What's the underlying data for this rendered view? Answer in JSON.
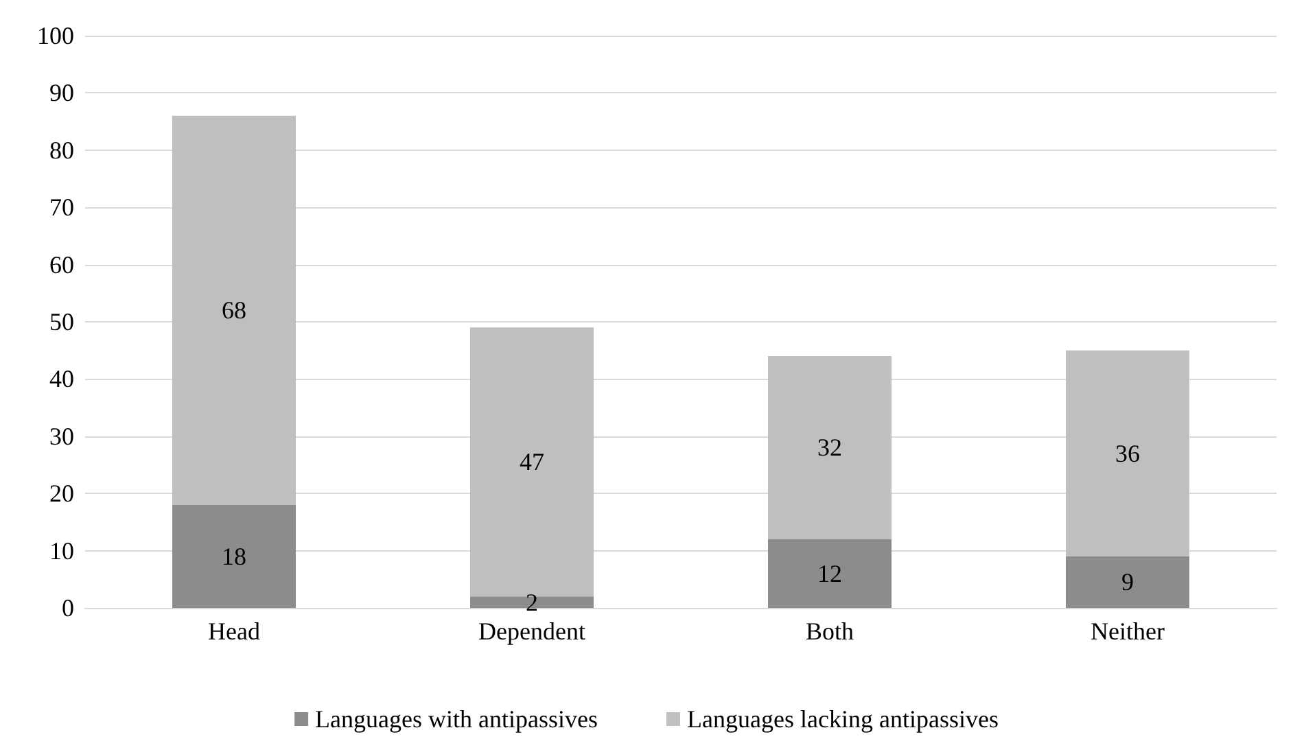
{
  "chart_data": {
    "type": "bar",
    "stacked": true,
    "categories": [
      "Head",
      "Dependent",
      "Both",
      "Neither"
    ],
    "series": [
      {
        "name": "Languages with antipassives",
        "color": "#8c8c8c",
        "values": [
          18,
          2,
          12,
          9
        ]
      },
      {
        "name": "Languages lacking antipassives",
        "color": "#bfbfbf",
        "values": [
          68,
          47,
          32,
          36
        ]
      }
    ],
    "ylim": [
      0,
      100
    ],
    "yticks": [
      0,
      10,
      20,
      30,
      40,
      50,
      60,
      70,
      80,
      90,
      100
    ],
    "grid": "y",
    "legend": "bottom",
    "data_labels": true
  }
}
